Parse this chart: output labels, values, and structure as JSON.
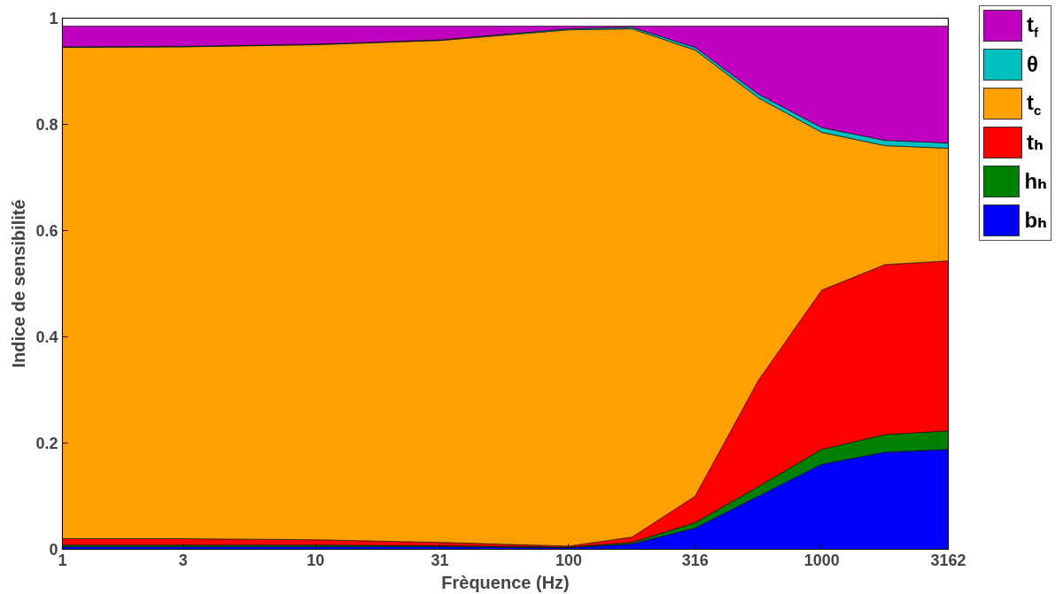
{
  "chart_data": {
    "type": "area",
    "stacked": true,
    "log": "x",
    "xlabel": "Frèquence (Hz)",
    "ylabel": "Indice de sensibilité",
    "x": [
      1,
      3,
      10,
      31,
      100,
      178,
      316,
      562,
      1000,
      1778,
      3162
    ],
    "xlim": [
      1,
      3162
    ],
    "xticks": [
      1,
      3,
      10,
      31,
      100,
      316,
      1000,
      3162
    ],
    "ylim": [
      0,
      1
    ],
    "yticks": [
      0,
      0.2,
      0.4,
      0.6,
      0.8,
      1
    ],
    "grid": false,
    "legend": "top right",
    "series": [
      {
        "name": "bₕ",
        "color": "#0000ff",
        "values": [
          0.005,
          0.005,
          0.005,
          0.005,
          0.003,
          0.01,
          0.04,
          0.1,
          0.16,
          0.183,
          0.188
        ]
      },
      {
        "name": "hₕ",
        "color": "#008000",
        "values": [
          0.003,
          0.003,
          0.003,
          0.002,
          0.001,
          0.003,
          0.01,
          0.018,
          0.028,
          0.033,
          0.035
        ]
      },
      {
        "name": "tₕ",
        "color": "#ff0000",
        "values": [
          0.012,
          0.012,
          0.01,
          0.006,
          0.002,
          0.01,
          0.05,
          0.2,
          0.3,
          0.32,
          0.32
        ]
      },
      {
        "name": "t$_{c}$",
        "color": "#ff9f00",
        "values": [
          0.925,
          0.926,
          0.932,
          0.945,
          0.972,
          0.957,
          0.84,
          0.532,
          0.297,
          0.224,
          0.212
        ]
      },
      {
        "name": "θ",
        "color": "#00bfbf",
        "values": [
          0.001,
          0.001,
          0.001,
          0.001,
          0.002,
          0.003,
          0.005,
          0.007,
          0.009,
          0.01,
          0.01
        ]
      },
      {
        "name": "t$_{f}$",
        "color": "#bf00bf",
        "values": [
          0.039,
          0.038,
          0.034,
          0.026,
          0.005,
          0.002,
          0.04,
          0.128,
          0.191,
          0.215,
          0.22
        ]
      }
    ]
  }
}
